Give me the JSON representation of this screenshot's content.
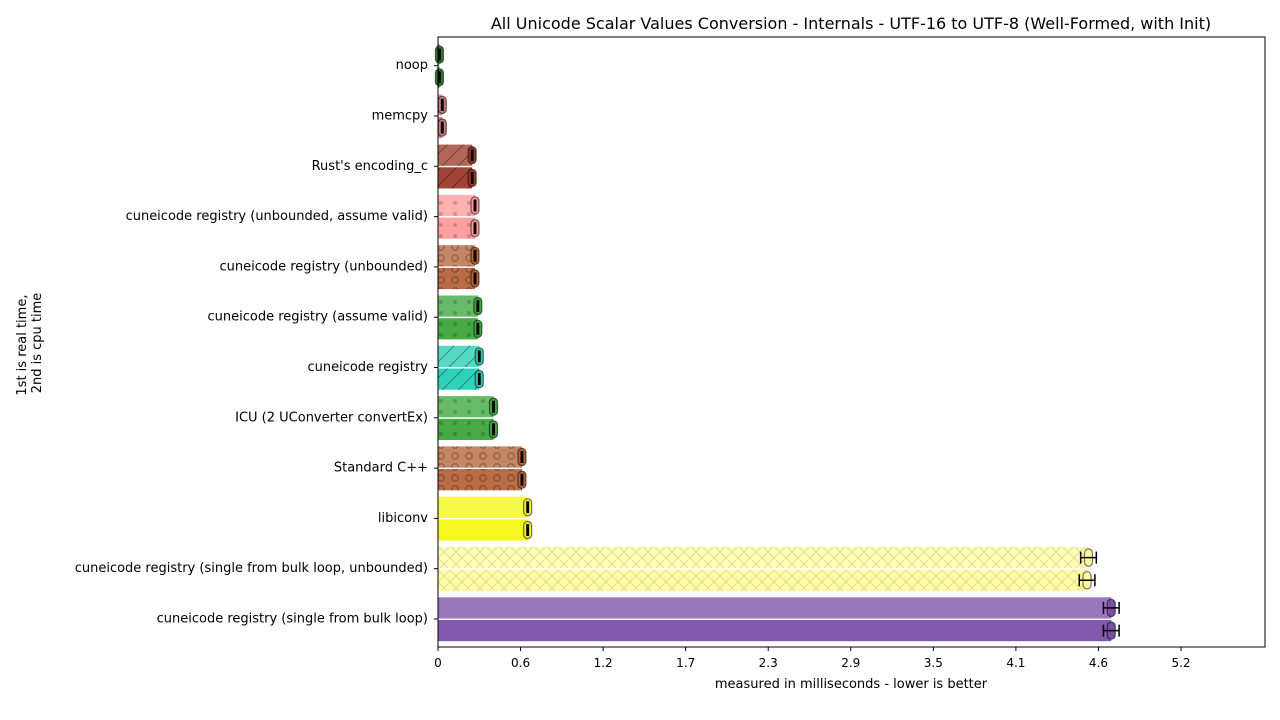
{
  "chart_data": {
    "type": "bar",
    "orientation": "horizontal",
    "title": "All Unicode Scalar Values Conversion - Internals - UTF-16 to UTF-8 (Well-Formed, with Init)",
    "xlabel": "measured in milliseconds - lower is better",
    "ylabel": "1st is real time,\n2nd is cpu time",
    "xticks": [
      "0",
      "0.6",
      "1.2",
      "1.7",
      "2.3",
      "2.9",
      "3.5",
      "4.1",
      "4.6",
      "5.2"
    ],
    "xtick_values": [
      0,
      0.58,
      1.16,
      1.74,
      2.32,
      2.9,
      3.48,
      4.06,
      4.64,
      5.22
    ],
    "xlim": [
      0,
      5.81
    ],
    "categories": [
      "noop",
      "memcpy",
      "Rust's encoding_c",
      "cuneicode registry (unbounded, assume valid)",
      "cuneicode registry (unbounded)",
      "cuneicode registry (assume valid)",
      "cuneicode registry",
      "ICU (2 UConverter convertEx)",
      "Standard C++",
      "libiconv",
      "cuneicode registry (single from bulk loop, unbounded)",
      "cuneicode registry (single from bulk loop)"
    ],
    "series": [
      {
        "values": [
          0.01,
          0.03,
          0.24,
          0.26,
          0.26,
          0.28,
          0.29,
          0.39,
          0.59,
          0.63,
          4.57,
          4.73
        ]
      },
      {
        "values": [
          0.01,
          0.03,
          0.24,
          0.26,
          0.26,
          0.28,
          0.29,
          0.39,
          0.59,
          0.63,
          4.56,
          4.73
        ]
      }
    ],
    "colors": [
      "#2e7d32",
      "#c97a84",
      "#9c3a2a",
      "#ff9b9b",
      "#b5643b",
      "#3ca63c",
      "#24cfb4",
      "#3ca63c",
      "#b5643b",
      "#f5f517",
      "#fffca0",
      "#7a4fa8"
    ],
    "grid": false
  }
}
